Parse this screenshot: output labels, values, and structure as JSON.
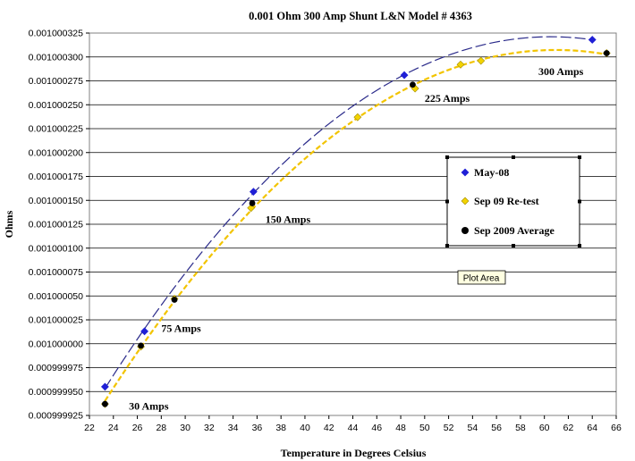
{
  "chart_data": {
    "type": "scatter",
    "title": "0.001 Ohm  300 Amp Shunt  L&N  Model # 4363",
    "xlabel": "Temperature in Degrees Celsius",
    "ylabel": "Ohms",
    "xlim": [
      22,
      66
    ],
    "ylim": [
      0.000999925,
      0.001000325
    ],
    "x_ticks": [
      22,
      24,
      26,
      28,
      30,
      32,
      34,
      36,
      38,
      40,
      42,
      44,
      46,
      48,
      50,
      52,
      54,
      56,
      58,
      60,
      62,
      64,
      66
    ],
    "y_ticks": [
      "0.001000325",
      "0.001000300",
      "0.001000275",
      "0.001000250",
      "0.001000225",
      "0.001000200",
      "0.001000175",
      "0.001000150",
      "0.001000125",
      "0.001000100",
      "0.001000075",
      "0.001000050",
      "0.001000025",
      "0.001000000",
      "0.000999975",
      "0.000999950",
      "0.000999925"
    ],
    "y_tick_values": [
      0.001000325,
      0.0010003,
      0.001000275,
      0.00100025,
      0.001000225,
      0.0010002,
      0.001000175,
      0.00100015,
      0.001000125,
      0.0010001,
      0.001000075,
      0.00100005,
      0.001000025,
      0.001,
      0.000999975,
      0.00099995,
      0.000999925
    ],
    "grid": "horizontal",
    "legend_position": "center-right",
    "series": [
      {
        "name": "May-08",
        "marker": "diamond",
        "color": "#1f1fd6",
        "trendline_color": "#2a2a8a",
        "x": [
          23.3,
          26.6,
          35.7,
          48.3,
          64.0
        ],
        "y": [
          0.000999955,
          0.001000013,
          0.001000159,
          0.001000281,
          0.001000318
        ]
      },
      {
        "name": "Sep 09     Re-test",
        "marker": "diamond",
        "color": "#f2d300",
        "trendline_color": "#f2c400",
        "x": [
          23.3,
          26.3,
          29.1,
          35.5,
          44.4,
          49.2,
          53.0,
          54.7,
          65.2
        ],
        "y": [
          0.000999937,
          0.000999997,
          0.001000047,
          0.001000142,
          0.001000237,
          0.001000267,
          0.001000292,
          0.001000296,
          0.001000304
        ]
      },
      {
        "name": "Sep 2009 Average",
        "marker": "circle",
        "color": "#000000",
        "x": [
          23.3,
          26.3,
          29.1,
          35.6,
          49.0,
          65.2
        ],
        "y": [
          0.000999937,
          0.000999998,
          0.001000046,
          0.001000147,
          0.001000271,
          0.001000304
        ]
      }
    ],
    "annotations": [
      {
        "text": "30 Amps",
        "x": 25.3,
        "y": 0.000999935
      },
      {
        "text": "75 Amps",
        "x": 28.0,
        "y": 0.001000016
      },
      {
        "text": "150 Amps",
        "x": 36.7,
        "y": 0.00100013
      },
      {
        "text": "225 Amps",
        "x": 50.0,
        "y": 0.001000257
      },
      {
        "text": "300 Amps",
        "x": 59.5,
        "y": 0.001000285
      }
    ],
    "tooltip": "Plot Area"
  }
}
